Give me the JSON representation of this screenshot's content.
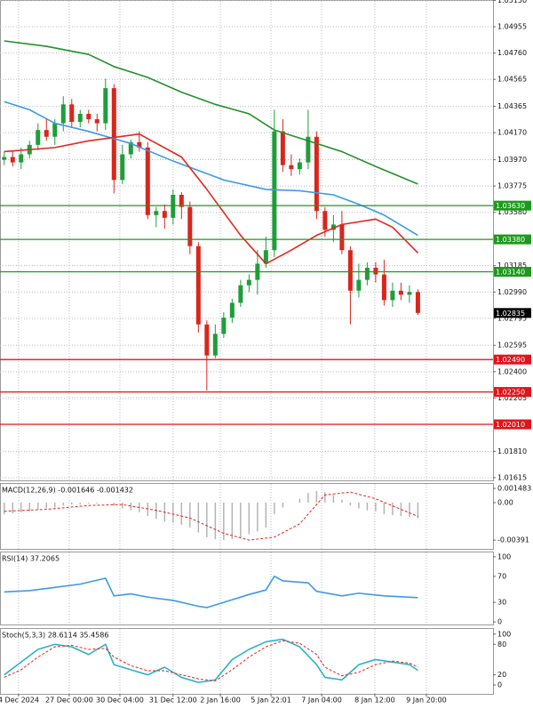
{
  "chart_data": [
    {
      "type": "candlestick",
      "xlim": [
        -0.5,
        57.9
      ],
      "xticks": [
        {
          "value": 1.7,
          "label": "4 Dec 2024"
        },
        {
          "value": 7.7,
          "label": "27 Dec 00:00"
        },
        {
          "value": 13.7,
          "label": "30 Dec 04:00"
        },
        {
          "value": 20,
          "label": "31 Dec 12:00"
        },
        {
          "value": 25.6,
          "label": "2 Jan 16:00"
        },
        {
          "value": 31.6,
          "label": "5 Jan 22:01"
        },
        {
          "value": 37.6,
          "label": "7 Jan 04:00"
        },
        {
          "value": 43.9,
          "label": "8 Jan 12:00"
        },
        {
          "value": 50,
          "label": "9 Jan 20:00"
        }
      ],
      "ylim": [
        1.01595,
        1.05153
      ],
      "yticks": [
        {
          "value": 1.0515,
          "label": "1.05150"
        },
        1.04955,
        {
          "value": 1.0476,
          "label": "1.04760"
        },
        1.04565,
        1.04365,
        {
          "value": 1.0417,
          "label": "1.04170"
        },
        {
          "value": 1.0397,
          "label": "1.03970"
        },
        1.03775,
        {
          "value": 1.0358,
          "label": "1.03580"
        },
        1.03185,
        {
          "value": 1.0299,
          "label": "1.02990"
        },
        1.02795,
        1.02595,
        {
          "value": 1.024,
          "label": "1.02400"
        },
        1.02205,
        {
          "value": 1.0181,
          "label": "1.01810"
        },
        1.01615
      ],
      "grid": true,
      "up_color": "#1e9e3a",
      "down_color": "#d9261c",
      "open": [
        1.0397,
        1.0399,
        1.0395,
        1.0401,
        1.0408,
        1.0419,
        1.0414,
        1.0424,
        1.0438,
        1.0425,
        1.0431,
        1.0427,
        1.0424,
        1.045,
        1.0382,
        1.0401,
        1.041,
        1.0406,
        1.0356,
        1.0359,
        1.0354,
        1.0371,
        1.0362,
        1.0333,
        1.0275,
        1.0252,
        1.0268,
        1.028,
        1.0291,
        1.0304,
        1.0308,
        1.032,
        1.033,
        1.0418,
        1.0393,
        1.039,
        1.0395,
        1.0414,
        1.0359,
        1.0345,
        1.0349,
        1.033,
        1.03,
        1.0308,
        1.0317,
        1.0312,
        1.0293,
        1.03,
        1.0297,
        1.0299
      ],
      "high": [
        1.0403,
        1.0404,
        1.0406,
        1.0411,
        1.0424,
        1.0427,
        1.0427,
        1.0444,
        1.0442,
        1.0434,
        1.0434,
        1.0431,
        1.0457,
        1.0453,
        1.0408,
        1.0412,
        1.0418,
        1.041,
        1.0362,
        1.0364,
        1.0375,
        1.0373,
        1.0366,
        1.0336,
        1.0278,
        1.0275,
        1.0284,
        1.0294,
        1.0308,
        1.0312,
        1.033,
        1.034,
        1.0434,
        1.0427,
        1.0401,
        1.0398,
        1.0434,
        1.0418,
        1.0362,
        1.0356,
        1.0359,
        1.0333,
        1.032,
        1.0321,
        1.0321,
        1.0323,
        1.0306,
        1.0306,
        1.0304,
        1.0301
      ],
      "low": [
        1.0393,
        1.0392,
        1.039,
        1.0398,
        1.0404,
        1.0411,
        1.0408,
        1.0418,
        1.0421,
        1.0421,
        1.0424,
        1.0418,
        1.0419,
        1.0372,
        1.0379,
        1.0398,
        1.0403,
        1.0353,
        1.0347,
        1.0346,
        1.0349,
        1.0353,
        1.0327,
        1.0269,
        1.0226,
        1.025,
        1.0265,
        1.0276,
        1.0288,
        1.0299,
        1.0297,
        1.0317,
        1.0325,
        1.0388,
        1.0385,
        1.0386,
        1.039,
        1.0353,
        1.034,
        1.0336,
        1.0327,
        1.0275,
        1.0295,
        1.0304,
        1.0306,
        1.0289,
        1.0288,
        1.0293,
        1.0291,
        1.0282
      ],
      "close": [
        1.0399,
        1.0395,
        1.0401,
        1.0408,
        1.0419,
        1.0414,
        1.0424,
        1.0438,
        1.0425,
        1.0431,
        1.0427,
        1.0424,
        1.045,
        1.0382,
        1.0401,
        1.041,
        1.0406,
        1.0356,
        1.0359,
        1.0354,
        1.0371,
        1.0362,
        1.0333,
        1.0275,
        1.0252,
        1.0268,
        1.028,
        1.0291,
        1.0304,
        1.0308,
        1.032,
        1.033,
        1.0418,
        1.0393,
        1.039,
        1.0395,
        1.0414,
        1.0359,
        1.0345,
        1.0349,
        1.033,
        1.03,
        1.0308,
        1.0317,
        1.0312,
        1.0293,
        1.03,
        1.0297,
        1.0299,
        1.02835
      ],
      "series": [
        {
          "color": "#23912b",
          "x": [
            0,
            5,
            10,
            13,
            17,
            21,
            25,
            29,
            32,
            36,
            40,
            44,
            49
          ],
          "values": [
            1.0485,
            1.0481,
            1.0475,
            1.0466,
            1.0458,
            1.0447,
            1.0438,
            1.0431,
            1.0419,
            1.0411,
            1.0403,
            1.0392,
            1.0379
          ]
        },
        {
          "color": "#3d9ae8",
          "x": [
            0,
            3,
            6,
            10,
            15,
            20,
            26,
            31,
            35,
            39,
            42,
            45,
            49
          ],
          "values": [
            1.044,
            1.0434,
            1.0424,
            1.0418,
            1.0409,
            1.0396,
            1.0382,
            1.0375,
            1.0374,
            1.0371,
            1.0364,
            1.0356,
            1.0341
          ]
        },
        {
          "color": "#e3271d",
          "x": [
            0,
            6,
            10,
            16,
            21,
            24,
            28,
            31,
            34,
            37,
            40,
            44,
            46,
            49
          ],
          "values": [
            1.0403,
            1.0406,
            1.0411,
            1.0416,
            1.0399,
            1.0375,
            1.0341,
            1.032,
            1.033,
            1.0341,
            1.0349,
            1.0353,
            1.0347,
            1.0328
          ]
        }
      ],
      "levels": [
        {
          "value": 1.0363,
          "label": "1.03630",
          "color": "#1c9a1c"
        },
        {
          "value": 1.0338,
          "label": "1.03380",
          "color": "#1c9a1c"
        },
        {
          "value": 1.0314,
          "label": "1.03140",
          "color": "#1c9a1c"
        },
        {
          "value": 1.0249,
          "label": "1.02490",
          "color": "#e0141a"
        },
        {
          "value": 1.0225,
          "label": "1.02250",
          "color": "#e0141a"
        },
        {
          "value": 1.0201,
          "label": "1.02010",
          "color": "#e0141a"
        }
      ],
      "last_price": 1.02835
    },
    {
      "type": "macd",
      "title": "MACD(12,26,9) -0.001646 -0.001432",
      "ylim": [
        -0.00482,
        0.00204
      ],
      "yticks": [
        0.001483,
        {
          "value": 0,
          "label": "0.00"
        },
        -0.00391
      ],
      "grid": false,
      "bar_color": "#b4b4b4",
      "values": [
        -0.0012,
        -0.0011,
        -0.001,
        -0.0009,
        -0.0007,
        -0.0006,
        -0.0005,
        -0.0003,
        -0.0002,
        -0.0002,
        -0.0001,
        -0.0001,
        0.0,
        -0.0003,
        -0.0006,
        -0.0008,
        -0.001,
        -0.0014,
        -0.0017,
        -0.002,
        -0.0021,
        -0.0023,
        -0.0026,
        -0.0031,
        -0.0036,
        -0.0038,
        -0.0039,
        -0.0038,
        -0.0036,
        -0.0033,
        -0.003,
        -0.0026,
        -0.0012,
        -0.0005,
        0.0,
        0.0004,
        0.001,
        0.0012,
        0.0011,
        0.0008,
        0.0003,
        -0.0003,
        -0.0006,
        -0.0008,
        -0.0009,
        -0.0012,
        -0.0013,
        -0.0014,
        -0.0015,
        -0.001646
      ],
      "series": [
        {
          "color": "#e3271d",
          "dashed": true,
          "x": [
            0,
            5,
            10,
            14,
            18,
            22,
            26,
            29,
            32,
            35,
            38,
            41,
            44,
            47,
            49
          ],
          "values": [
            -0.0009,
            -0.0007,
            -0.0003,
            -0.0002,
            -0.0008,
            -0.0016,
            -0.0032,
            -0.0039,
            -0.0036,
            -0.0022,
            0.0008,
            0.0011,
            0.0004,
            -0.0007,
            -0.001432
          ]
        }
      ]
    },
    {
      "type": "oscillator",
      "title": "RSI(14) 37.2065",
      "ylim": [
        -4,
        108
      ],
      "yticks": [
        100,
        70,
        30,
        0
      ],
      "grid": false,
      "series": [
        {
          "color": "#3d9ae8",
          "dashed": false,
          "x": [
            0,
            3,
            6,
            9,
            12,
            13,
            15,
            17,
            20,
            23,
            24,
            26,
            29,
            31,
            32,
            33,
            36,
            37,
            40,
            42,
            45,
            49
          ],
          "values": [
            46,
            48,
            53,
            58,
            67,
            40,
            43,
            38,
            33,
            24,
            22,
            30,
            42,
            49,
            70,
            63,
            60,
            47,
            40,
            44,
            40,
            37.2065
          ]
        }
      ]
    },
    {
      "type": "oscillator",
      "title": "Stoch(5,3,3) 28.6114 35.4586",
      "ylim": [
        -17.5,
        112
      ],
      "yticks": [
        100,
        80,
        20,
        0
      ],
      "grid": false,
      "series": [
        {
          "color": "#2ab3c7",
          "dashed": false,
          "x": [
            0,
            2,
            4,
            6,
            8,
            10,
            11,
            12,
            13,
            15,
            17,
            19,
            21,
            23,
            25,
            27,
            29,
            31,
            33,
            35,
            37,
            38,
            40,
            42,
            44,
            46,
            48,
            49
          ],
          "values": [
            20,
            45,
            70,
            80,
            75,
            60,
            70,
            80,
            40,
            30,
            20,
            35,
            15,
            5,
            10,
            50,
            70,
            85,
            90,
            75,
            40,
            15,
            10,
            40,
            50,
            45,
            40,
            28.6114
          ]
        },
        {
          "color": "#e3271d",
          "dashed": true,
          "x": [
            0,
            2,
            4,
            6,
            8,
            10,
            12,
            13,
            15,
            17,
            19,
            21,
            23,
            25,
            27,
            29,
            31,
            33,
            35,
            37,
            38,
            40,
            42,
            44,
            46,
            48,
            49
          ],
          "values": [
            15,
            30,
            55,
            75,
            78,
            70,
            72,
            55,
            38,
            28,
            28,
            20,
            12,
            8,
            30,
            55,
            75,
            87,
            82,
            60,
            35,
            18,
            25,
            40,
            47,
            43,
            35.4586
          ]
        }
      ]
    }
  ]
}
